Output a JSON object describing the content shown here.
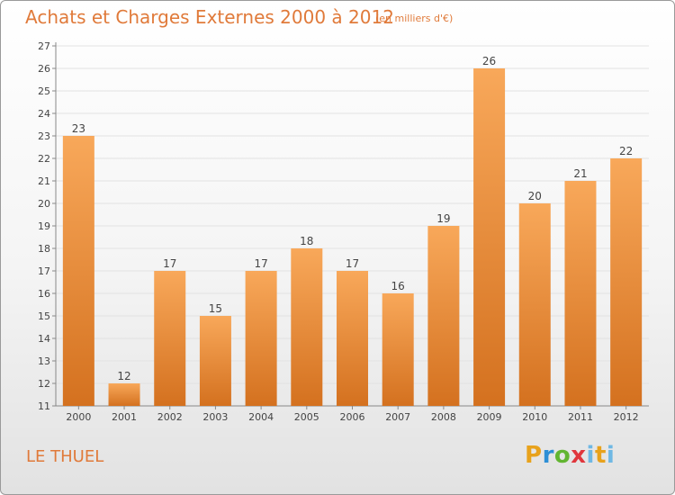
{
  "header": {
    "title": "Achats et Charges Externes 2000 à 2012",
    "units": "(en milliers d'€)"
  },
  "footer": {
    "commune": "LE THUEL",
    "logo": [
      "P",
      "r",
      "o",
      "x",
      "i",
      "t",
      "i"
    ]
  },
  "colors": {
    "accent": "#e07a3a",
    "bar_top": "#f8a85a",
    "bar_bottom": "#d4711f"
  },
  "chart_data": {
    "type": "bar",
    "categories": [
      "2000",
      "2001",
      "2002",
      "2003",
      "2004",
      "2005",
      "2006",
      "2007",
      "2008",
      "2009",
      "2010",
      "2011",
      "2012"
    ],
    "values": [
      23,
      12,
      17,
      15,
      17,
      18,
      17,
      16,
      19,
      26,
      20,
      21,
      22
    ],
    "title": "Achats et Charges Externes 2000 à 2012",
    "subtitle": "(en milliers d'€)",
    "ylim": [
      11,
      27
    ],
    "yticks": [
      11,
      12,
      13,
      14,
      15,
      16,
      17,
      18,
      19,
      20,
      21,
      22,
      23,
      24,
      25,
      26,
      27
    ],
    "grid": true,
    "legend": "none"
  }
}
